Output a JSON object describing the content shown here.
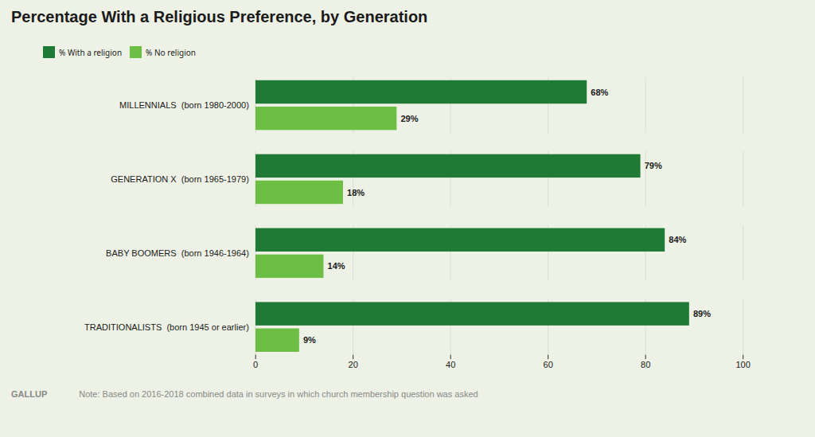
{
  "chart_data": {
    "type": "bar",
    "orientation": "horizontal",
    "title": "Percentage With a Religious Preference, by Generation",
    "categories": [
      "MILLENNIALS  (born 1980-2000)",
      "GENERATION X  (born 1965-1979)",
      "BABY BOOMERS  (born 1946-1964)",
      "TRADITIONALISTS  (born 1945 or earlier)"
    ],
    "series": [
      {
        "name": "% With a religion",
        "color": "#1e7a34",
        "values": [
          68,
          79,
          84,
          89
        ],
        "value_labels": [
          "68%",
          "79%",
          "84%",
          "89%"
        ]
      },
      {
        "name": "% No religion",
        "color": "#6dbe45",
        "values": [
          29,
          18,
          14,
          9
        ],
        "value_labels": [
          "29%",
          "18%",
          "14%",
          "9%"
        ]
      }
    ],
    "xlim": [
      0,
      100
    ],
    "xticks": [
      0,
      20,
      40,
      60,
      80,
      100
    ],
    "grid": true,
    "legend": "upper left",
    "data_labels": true,
    "annotations": [
      "GALLUP",
      "Note: Based on 2016-2018 combined data in surveys in which church membership question was asked"
    ]
  }
}
